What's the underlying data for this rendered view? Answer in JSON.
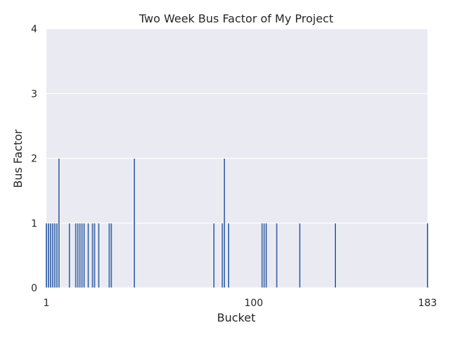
{
  "chart_data": {
    "type": "bar",
    "title": "Two Week Bus Factor of My Project",
    "xlabel": "Bucket",
    "ylabel": "Bus Factor",
    "xlim": [
      1,
      183
    ],
    "ylim": [
      0,
      4
    ],
    "xticks": [
      1,
      100,
      183
    ],
    "yticks": [
      0,
      1,
      2,
      3,
      4
    ],
    "grid": true,
    "colors": {
      "plot_bg": "#eaeaf2",
      "grid": "#ffffff",
      "bar": "#4c72b0",
      "bar_edge": "#ffffff"
    },
    "points": [
      {
        "x": 1,
        "y": 1
      },
      {
        "x": 2,
        "y": 1
      },
      {
        "x": 3,
        "y": 1
      },
      {
        "x": 4,
        "y": 1
      },
      {
        "x": 5,
        "y": 1
      },
      {
        "x": 6,
        "y": 1
      },
      {
        "x": 7,
        "y": 2
      },
      {
        "x": 12,
        "y": 1
      },
      {
        "x": 15,
        "y": 1
      },
      {
        "x": 16,
        "y": 1
      },
      {
        "x": 17,
        "y": 1
      },
      {
        "x": 18,
        "y": 1
      },
      {
        "x": 19,
        "y": 1
      },
      {
        "x": 21,
        "y": 1
      },
      {
        "x": 23,
        "y": 1
      },
      {
        "x": 24,
        "y": 1
      },
      {
        "x": 26,
        "y": 1
      },
      {
        "x": 31,
        "y": 1
      },
      {
        "x": 32,
        "y": 1
      },
      {
        "x": 43,
        "y": 2
      },
      {
        "x": 81,
        "y": 1
      },
      {
        "x": 85,
        "y": 1
      },
      {
        "x": 86,
        "y": 2
      },
      {
        "x": 88,
        "y": 1
      },
      {
        "x": 104,
        "y": 1
      },
      {
        "x": 105,
        "y": 1
      },
      {
        "x": 106,
        "y": 1
      },
      {
        "x": 111,
        "y": 1
      },
      {
        "x": 122,
        "y": 1
      },
      {
        "x": 139,
        "y": 1
      },
      {
        "x": 183,
        "y": 1
      }
    ]
  }
}
